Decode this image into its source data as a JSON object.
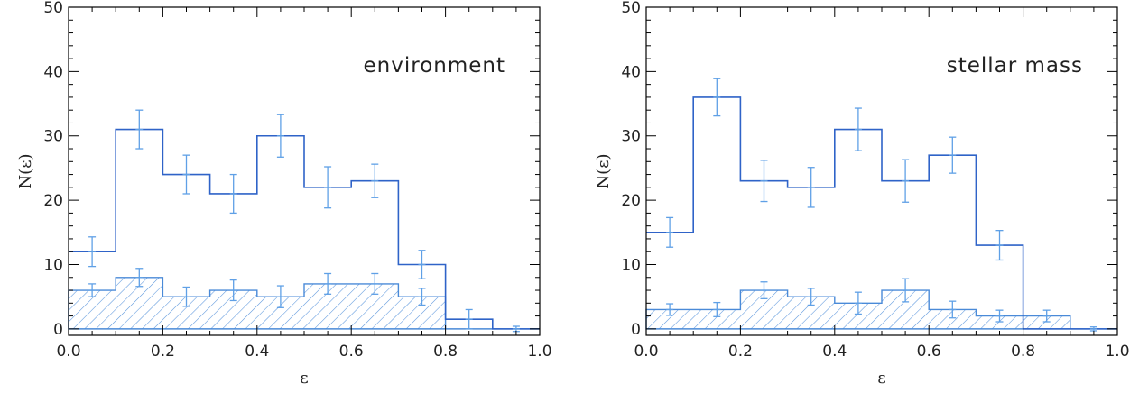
{
  "chart_data": [
    {
      "type": "bar",
      "annotation": "environment",
      "xlabel": "ε",
      "ylabel": "N(ε)",
      "xlim": [
        0.0,
        1.0
      ],
      "ylim": [
        -1,
        50
      ],
      "x_ticks": [
        "0.0",
        "0.2",
        "0.4",
        "0.6",
        "0.8",
        "1.0"
      ],
      "y_ticks": [
        "0",
        "10",
        "20",
        "30",
        "40",
        "50"
      ],
      "bin_edges": [
        0.0,
        0.1,
        0.2,
        0.3,
        0.4,
        0.5,
        0.6,
        0.7,
        0.8,
        0.9,
        1.0
      ],
      "series": [
        {
          "style": "open histogram",
          "values": [
            12,
            31,
            24,
            21,
            30,
            22,
            23,
            10,
            1.5,
            0
          ],
          "errors": [
            2.3,
            3.0,
            3.0,
            3.0,
            3.3,
            3.2,
            2.6,
            2.2,
            1.5,
            0.4
          ]
        },
        {
          "style": "hatched histogram",
          "values": [
            6,
            8,
            5,
            6,
            5,
            7,
            7,
            5,
            0,
            0
          ],
          "errors": [
            1.0,
            1.4,
            1.5,
            1.6,
            1.7,
            1.6,
            1.6,
            1.3,
            0,
            0
          ]
        }
      ]
    },
    {
      "type": "bar",
      "annotation": "stellar mass",
      "xlabel": "ε",
      "ylabel": "N(ε)",
      "xlim": [
        0.0,
        1.0
      ],
      "ylim": [
        -1,
        50
      ],
      "x_ticks": [
        "0.0",
        "0.2",
        "0.4",
        "0.6",
        "0.8",
        "1.0"
      ],
      "y_ticks": [
        "0",
        "10",
        "20",
        "30",
        "40",
        "50"
      ],
      "bin_edges": [
        0.0,
        0.1,
        0.2,
        0.3,
        0.4,
        0.5,
        0.6,
        0.7,
        0.8,
        0.9,
        1.0
      ],
      "series": [
        {
          "style": "open histogram",
          "values": [
            15,
            36,
            23,
            22,
            31,
            23,
            27,
            13,
            0,
            0
          ],
          "errors": [
            2.3,
            2.9,
            3.2,
            3.1,
            3.3,
            3.3,
            2.8,
            2.3,
            0,
            0.3
          ]
        },
        {
          "style": "hatched histogram",
          "values": [
            3,
            3,
            6,
            5,
            4,
            6,
            3,
            2,
            2,
            0
          ],
          "errors": [
            0.9,
            1.1,
            1.3,
            1.3,
            1.7,
            1.8,
            1.3,
            0.9,
            0.9,
            0
          ]
        }
      ]
    }
  ],
  "colors": {
    "total_line": "#2f63c8",
    "subset_line": "#4a8ad8",
    "error_bars": "#5fa0e6",
    "axes": "#000000"
  }
}
